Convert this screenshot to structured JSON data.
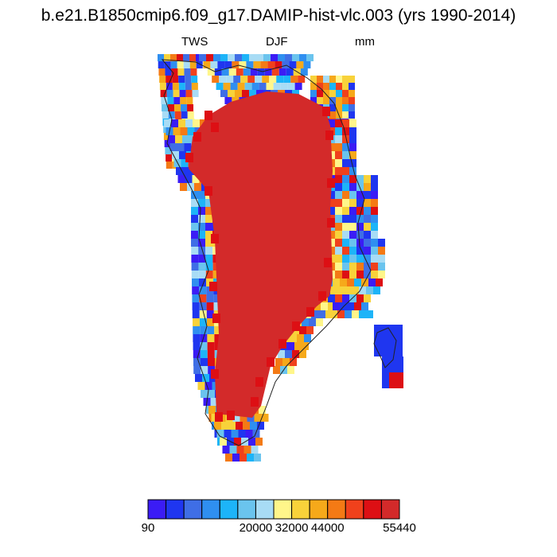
{
  "title": "b.e21.B1850cmip6.f09_g17.DAMIP-hist-vlc.003 (yrs 1990-2014)",
  "subtitle_left": "TWS",
  "subtitle_center": "DJF",
  "subtitle_right": "mm",
  "colorbar": {
    "colors": [
      "#3b1cf5",
      "#1f36f0",
      "#3f6ee6",
      "#2f8ff0",
      "#1db4f8",
      "#6ac4ee",
      "#a8dcf5",
      "#fff68a",
      "#f8d23a",
      "#f6a91a",
      "#f47a15",
      "#f0411c",
      "#dd0f14",
      "#d32a2a"
    ],
    "tick_labels": [
      "90",
      "20000",
      "32000",
      "44000",
      "55440"
    ],
    "tick_boundary_index": [
      0,
      6,
      8,
      10,
      14
    ]
  },
  "map": {
    "ice_color": "#d32a2a",
    "region": "Greenland"
  }
}
